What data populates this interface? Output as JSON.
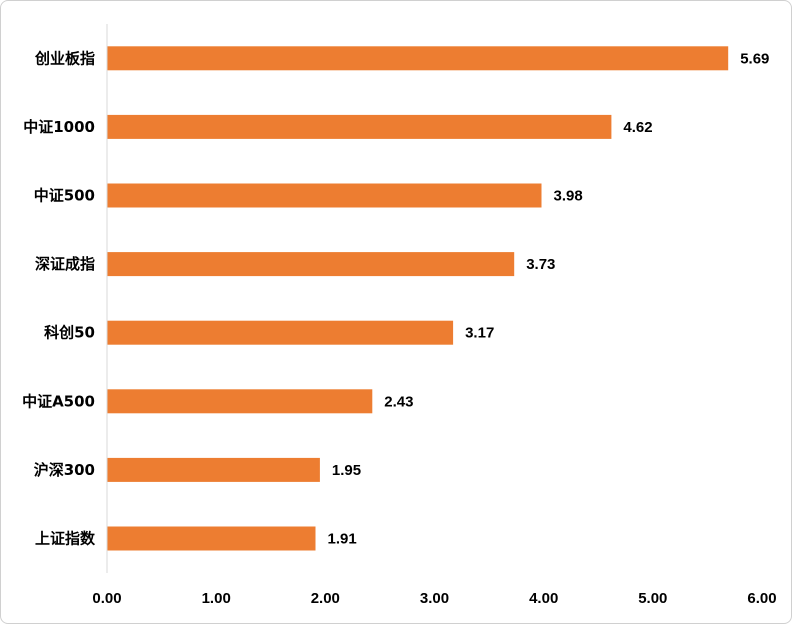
{
  "chart_data": {
    "type": "bar",
    "orientation": "horizontal",
    "categories": [
      "创业板指",
      "中证1000",
      "中证500",
      "深证成指",
      "科创50",
      "中证A500",
      "沪深300",
      "上证指数"
    ],
    "values": [
      5.69,
      4.62,
      3.98,
      3.73,
      3.17,
      2.43,
      1.95,
      1.91
    ],
    "value_labels": [
      "5.69",
      "4.62",
      "3.98",
      "3.73",
      "3.17",
      "2.43",
      "1.95",
      "1.91"
    ],
    "xlim": [
      0,
      6
    ],
    "x_ticks": [
      "0.00",
      "1.00",
      "2.00",
      "3.00",
      "4.00",
      "5.00",
      "6.00"
    ],
    "title": "",
    "xlabel": "",
    "ylabel": "",
    "grid": false,
    "legend": "none",
    "bar_color": "#ED7D31"
  }
}
